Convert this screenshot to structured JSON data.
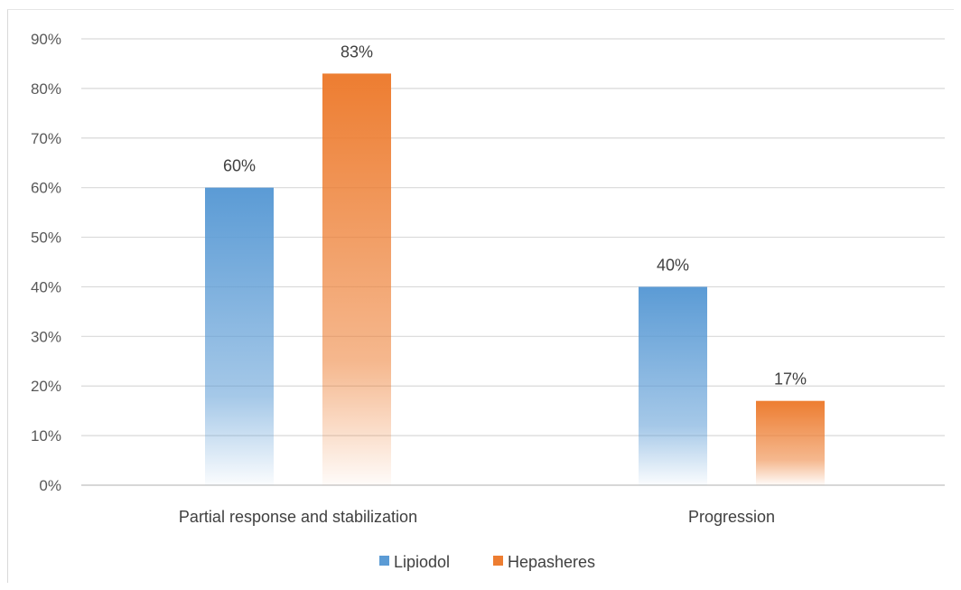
{
  "chart_data": {
    "type": "bar",
    "categories": [
      "Partial response and stabilization",
      "Progression"
    ],
    "series": [
      {
        "name": "Lipiodol",
        "values": [
          60,
          40
        ],
        "labels": [
          "60%",
          "40%"
        ],
        "color": "#5b9bd5"
      },
      {
        "name": "Hepasheres",
        "values": [
          83,
          17
        ],
        "labels": [
          "83%",
          "17%"
        ],
        "color": "#ed7d31"
      }
    ],
    "ylim": [
      0,
      90
    ],
    "yticks": [
      "0%",
      "10%",
      "20%",
      "30%",
      "40%",
      "50%",
      "60%",
      "70%",
      "80%",
      "90%"
    ],
    "grid": true,
    "legend_position": "bottom"
  }
}
